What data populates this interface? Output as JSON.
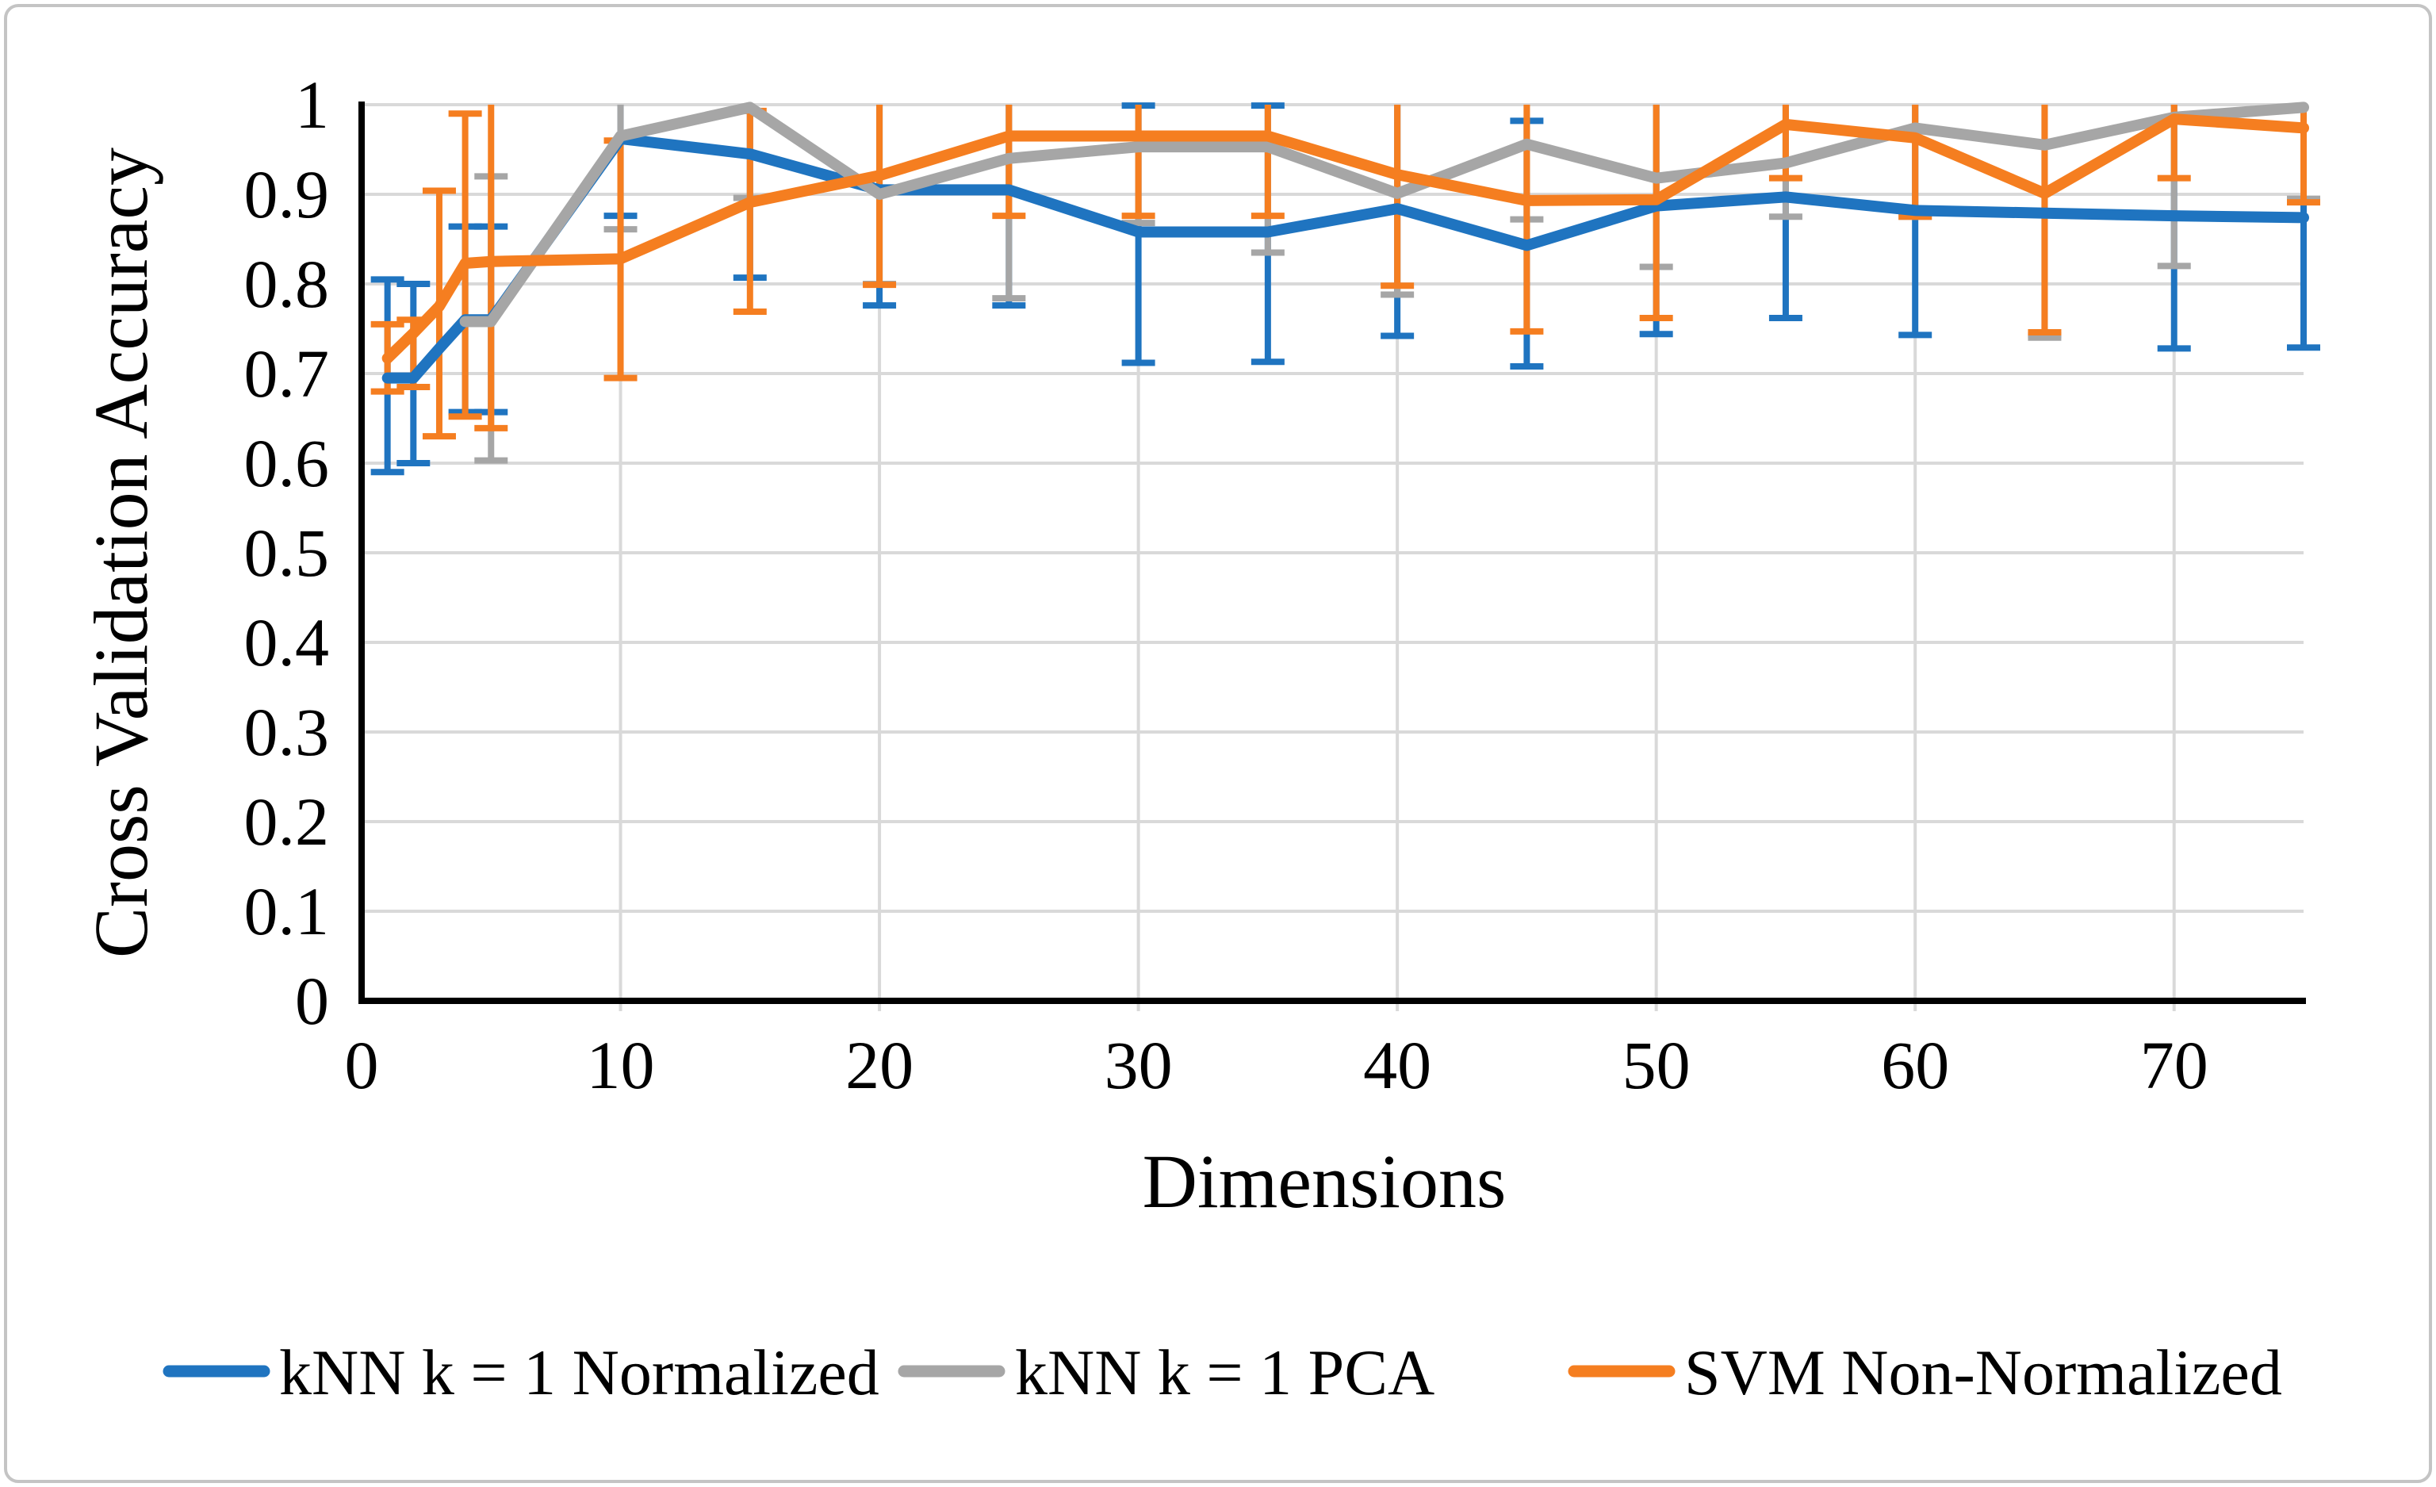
{
  "chart_data": {
    "type": "line",
    "title": "",
    "xlabel": "Dimensions",
    "ylabel": "Cross Validation Accuracy",
    "xlim": [
      0,
      75
    ],
    "ylim": [
      0,
      1
    ],
    "grid": true,
    "legend_position": "bottom",
    "x_tick_labels": [
      "0",
      "10",
      "20",
      "30",
      "40",
      "50",
      "60",
      "70"
    ],
    "x_tick_values": [
      0,
      10,
      20,
      30,
      40,
      50,
      60,
      70
    ],
    "y_tick_labels": [
      "1",
      "0.9",
      "0.8",
      "0.7",
      "0.6",
      "0.5",
      "0.4",
      "0.3",
      "0.2",
      "0.1",
      "0"
    ],
    "y_tick_values": [
      1,
      0.9,
      0.8,
      0.7,
      0.6,
      0.5,
      0.4,
      0.3,
      0.2,
      0.1,
      0
    ],
    "series": [
      {
        "name": "kNN k = 1 Normalized",
        "color": "#1F74C0",
        "x": [
          1,
          2,
          3,
          4,
          5,
          10,
          15,
          20,
          25,
          30,
          35,
          40,
          45,
          50,
          55,
          60,
          65,
          70,
          75
        ],
        "y": [
          0.695,
          0.695,
          0.728,
          0.76,
          0.76,
          0.962,
          0.945,
          0.905,
          0.905,
          0.858,
          0.858,
          0.884,
          0.843,
          0.887,
          0.897,
          0.882,
          0.879,
          0.876,
          0.874
        ],
        "err_lo": [
          0.59,
          0.6,
          null,
          0.657,
          0.657,
          0.876,
          0.807,
          0.776,
          0.776,
          0.712,
          0.713,
          0.742,
          0.708,
          0.744,
          0.762,
          0.743,
          0.743,
          0.728,
          0.729
        ],
        "err_hi": [
          0.805,
          0.8,
          null,
          0.864,
          0.864,
          1.05,
          1.08,
          1.03,
          1.04,
          0.999,
          0.999,
          1.03,
          0.982,
          1.03,
          1.03,
          1.02,
          1.02,
          1.02,
          1.02
        ]
      },
      {
        "name": "kNN k = 1 PCA",
        "color": "#A6A6A6",
        "x": [
          4,
          5,
          10,
          15,
          20,
          25,
          30,
          35,
          40,
          45,
          50,
          55,
          60,
          65,
          70,
          75
        ],
        "y": [
          0.758,
          0.758,
          0.965,
          0.997,
          0.9,
          0.94,
          0.953,
          0.953,
          0.901,
          0.956,
          0.918,
          0.935,
          0.974,
          0.955,
          0.986,
          0.997
        ],
        "err_lo": [
          null,
          0.603,
          0.861,
          0.896,
          0.8,
          0.784,
          0.868,
          0.835,
          0.788,
          0.872,
          0.819,
          0.875,
          0.875,
          0.74,
          0.82,
          0.895
        ],
        "err_hi": [
          null,
          0.92,
          1.07,
          1.1,
          1.01,
          1.1,
          1.04,
          1.07,
          1.01,
          1.04,
          1.02,
          1.01,
          1.07,
          1.05,
          1.05,
          1.05
        ]
      },
      {
        "name": "SVM Non-Normalized",
        "color": "#F57E20",
        "x": [
          1,
          2,
          3,
          4,
          5,
          10,
          15,
          20,
          25,
          30,
          35,
          40,
          45,
          50,
          55,
          60,
          65,
          70,
          75
        ],
        "y": [
          0.717,
          0.745,
          0.775,
          0.823,
          0.825,
          0.828,
          0.891,
          0.921,
          0.965,
          0.965,
          0.965,
          0.922,
          0.893,
          0.894,
          0.978,
          0.963,
          0.901,
          0.984,
          0.974
        ],
        "err_lo": [
          0.68,
          0.685,
          0.63,
          0.652,
          0.639,
          0.695,
          0.769,
          0.799,
          0.876,
          0.876,
          0.876,
          0.798,
          0.747,
          0.762,
          0.918,
          0.875,
          0.746,
          0.918,
          0.891
        ],
        "err_hi": [
          0.755,
          0.76,
          0.904,
          0.99,
          1.01,
          0.96,
          0.993,
          1.04,
          1.05,
          1.05,
          1.05,
          1.05,
          1.04,
          1.03,
          1.04,
          1.05,
          1.06,
          1.05,
          1.06
        ]
      }
    ]
  },
  "colors": {
    "background": "#FFFFFF",
    "gridline": "#D9D9D9",
    "axis": "#000000",
    "frame_border": "#C4C4C4",
    "text": "#000000",
    "series_blue": "#1F74C0",
    "series_gray": "#A6A6A6",
    "series_orange": "#F57E20"
  }
}
